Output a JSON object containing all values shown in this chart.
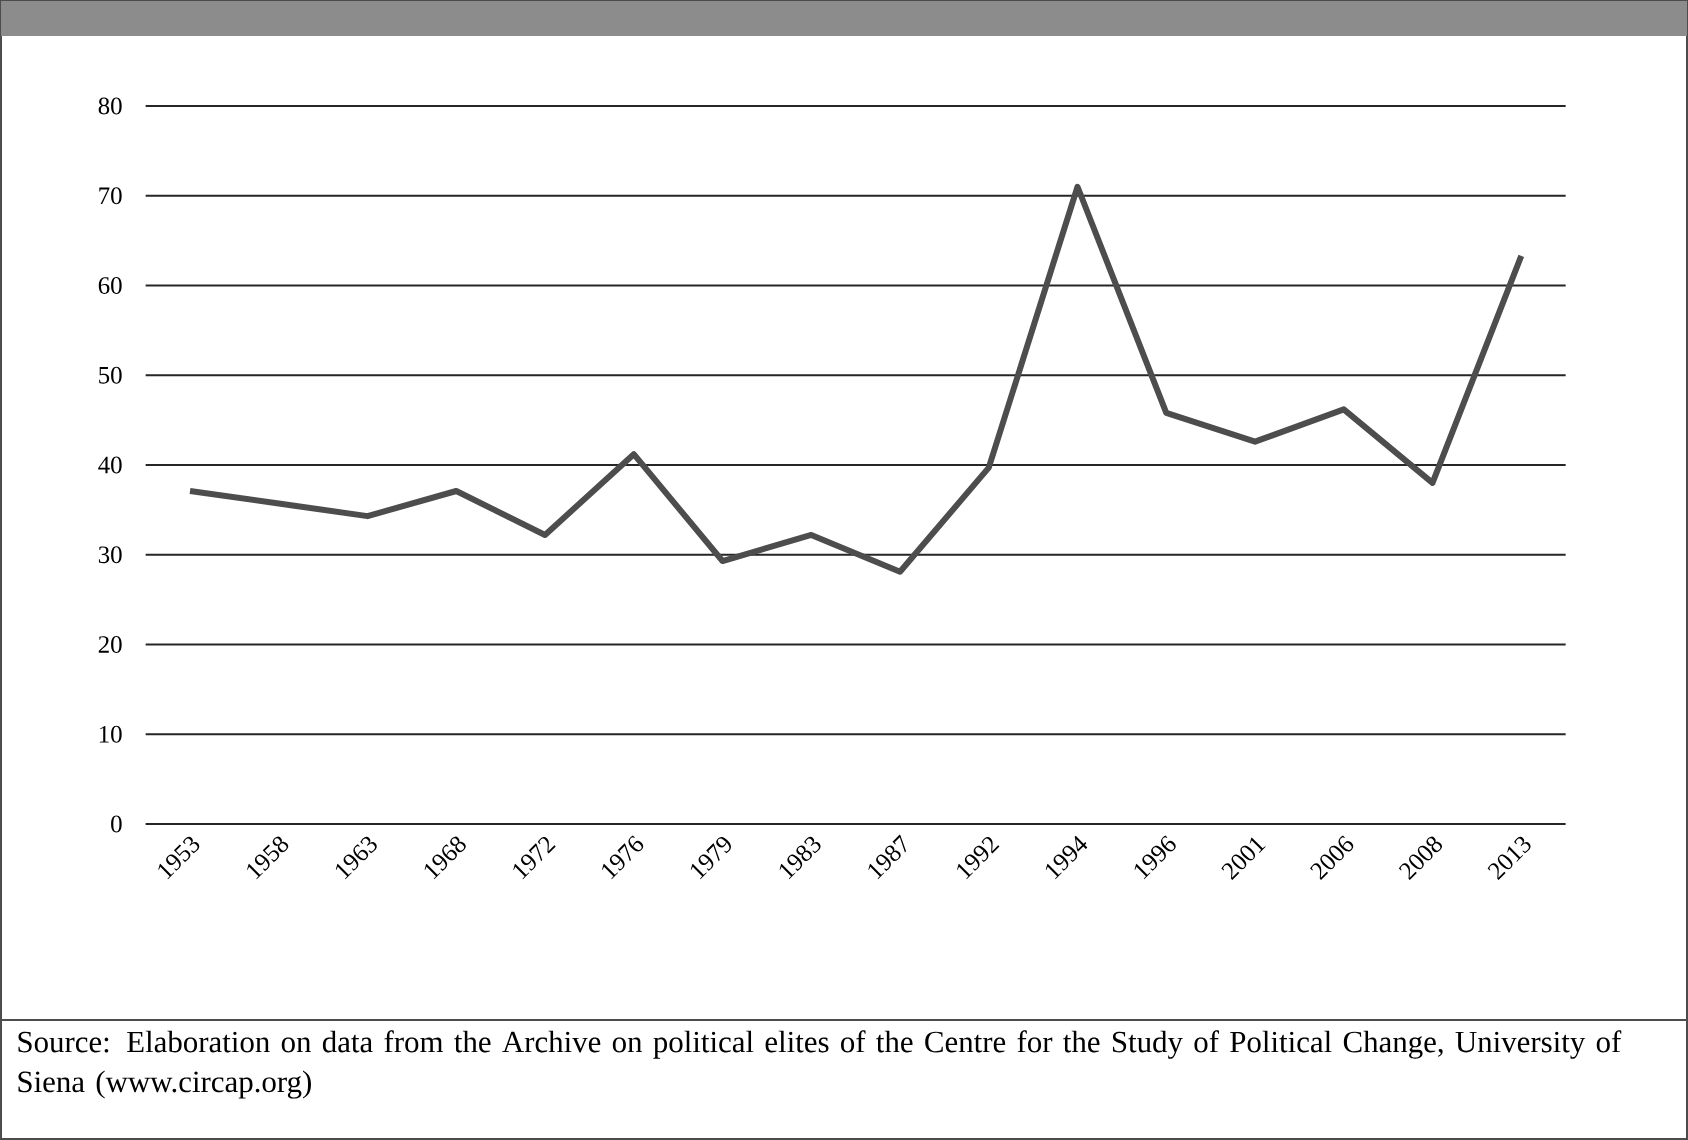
{
  "chart_data": {
    "type": "line",
    "categories": [
      "1953",
      "1958",
      "1963",
      "1968",
      "1972",
      "1976",
      "1979",
      "1983",
      "1987",
      "1992",
      "1994",
      "1996",
      "2001",
      "2006",
      "2008",
      "2013"
    ],
    "series": [
      {
        "color": "#4d4d4d",
        "values": [
          37.1,
          35.7,
          34.3,
          37.1,
          32.2,
          41.2,
          29.3,
          32.2,
          28.1,
          39.7,
          71,
          45.8,
          42.6,
          46.2,
          38.0,
          63.3
        ]
      }
    ],
    "ylim": [
      0,
      80
    ],
    "yticks": [
      0,
      10,
      20,
      30,
      40,
      50,
      60,
      70,
      80
    ],
    "grid": "y",
    "marker": "none",
    "line_style": "solid",
    "annotations": [
      "Source: Elaboration on data from the Archive on political elites of the Centre for the Study of Political Change, University of Siena (www.circap.org)"
    ]
  }
}
